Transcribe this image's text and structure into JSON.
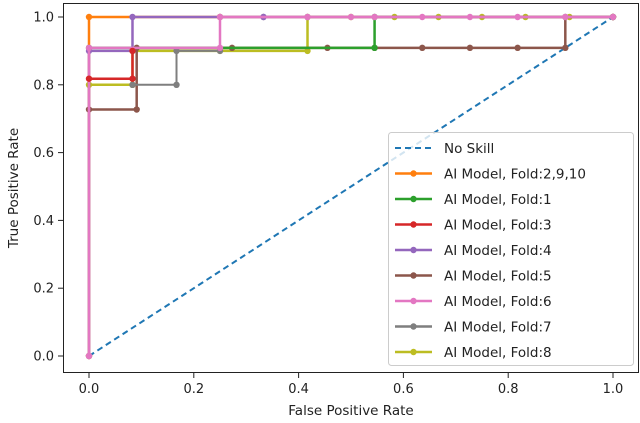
{
  "chart_data": {
    "type": "line",
    "title": "",
    "xlabel": "False Positive Rate",
    "ylabel": "True Positive Rate",
    "xlim": [
      -0.05,
      1.05
    ],
    "ylim": [
      -0.05,
      1.05
    ],
    "xticks": [
      "0.0",
      "0.2",
      "0.4",
      "0.6",
      "0.8",
      "1.0"
    ],
    "yticks": [
      "0.0",
      "0.2",
      "0.4",
      "0.6",
      "0.8",
      "1.0"
    ],
    "grid": false,
    "legend_position": "lower right",
    "series": [
      {
        "name": "No Skill",
        "color": "#1f77b4",
        "style": "dashed",
        "x": [
          0,
          1
        ],
        "y": [
          0,
          1
        ]
      },
      {
        "name": "AI Model, Fold:2,9,10",
        "color": "#ff7f0e",
        "x": [
          0,
          0,
          0.25,
          1
        ],
        "y": [
          0,
          1.0,
          1.0,
          1.0
        ]
      },
      {
        "name": "AI Model, Fold:1",
        "color": "#2ca02c",
        "x": [
          0,
          0.545,
          0.545,
          1
        ],
        "y": [
          0.909,
          0.909,
          1.0,
          1.0
        ]
      },
      {
        "name": "AI Model, Fold:3",
        "color": "#d62728",
        "x": [
          0,
          0.083,
          0.083
        ],
        "y": [
          0.818,
          0.818,
          0.9
        ]
      },
      {
        "name": "AI Model, Fold:4",
        "color": "#9467bd",
        "x": [
          0,
          0,
          0.083,
          0.083,
          0.333,
          1
        ],
        "y": [
          0,
          0.9,
          0.9,
          1.0,
          1.0,
          1.0
        ]
      },
      {
        "name": "AI Model, Fold:5",
        "color": "#8c564b",
        "x": [
          0,
          0.091,
          0.091,
          0.273,
          0.455,
          0.545,
          0.636,
          0.727,
          0.818,
          0.909,
          0.909,
          1
        ],
        "y": [
          0.727,
          0.727,
          0.909,
          0.909,
          0.909,
          0.909,
          0.909,
          0.909,
          0.909,
          0.909,
          1.0,
          1.0
        ]
      },
      {
        "name": "AI Model, Fold:6",
        "color": "#e377c2",
        "x": [
          0,
          0,
          0.25,
          0.25,
          0.417,
          0.5,
          0.545,
          0.636,
          0.727,
          0.818,
          0.909,
          1
        ],
        "y": [
          0,
          0.909,
          0.909,
          1.0,
          1.0,
          1.0,
          1.0,
          1.0,
          1.0,
          1.0,
          1.0,
          1.0
        ]
      },
      {
        "name": "AI Model, Fold:7",
        "color": "#7f7f7f",
        "x": [
          0.083,
          0.167,
          0.167,
          0.25,
          0.25,
          0.333,
          0.417
        ],
        "y": [
          0.8,
          0.8,
          0.9,
          0.9,
          1.0,
          1.0,
          1.0
        ]
      },
      {
        "name": "AI Model, Fold:8",
        "color": "#bcbd22",
        "x": [
          0,
          0,
          0.083,
          0.083,
          0.25,
          0.417,
          0.417,
          0.5,
          0.583,
          0.667,
          0.75,
          0.833,
          0.917,
          1
        ],
        "y": [
          0,
          0.8,
          0.8,
          0.9,
          0.9,
          0.9,
          1.0,
          1.0,
          1.0,
          1.0,
          1.0,
          1.0,
          1.0,
          1.0
        ]
      }
    ]
  }
}
